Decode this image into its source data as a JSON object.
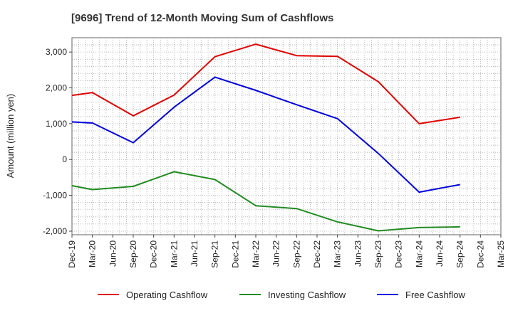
{
  "chart_data": {
    "type": "line",
    "title": "[9696]  Trend of 12-Month Moving Sum of Cashflows",
    "xlabel": "",
    "ylabel": "Amount (million yen)",
    "ylim": [
      -2100,
      3400
    ],
    "yticks": [
      -2000,
      -1000,
      0,
      1000,
      2000,
      3000
    ],
    "ytick_labels": [
      "-2,000",
      "-1,000",
      "0",
      "1,000",
      "2,000",
      "3,000"
    ],
    "categories": [
      "Dec-19",
      "Mar-20",
      "Jun-20",
      "Sep-20",
      "Dec-20",
      "Mar-21",
      "Jun-21",
      "Sep-21",
      "Dec-21",
      "Mar-22",
      "Jun-22",
      "Sep-22",
      "Dec-22",
      "Mar-23",
      "Jun-23",
      "Sep-23",
      "Dec-23",
      "Mar-24",
      "Jun-24",
      "Sep-24",
      "Dec-24",
      "Mar-25"
    ],
    "grid": true,
    "legend_position": "bottom",
    "series": [
      {
        "name": "Operating Cashflow",
        "color": "#e00000",
        "points": [
          [
            "Dec-19",
            1790
          ],
          [
            "Mar-20",
            1870
          ],
          [
            "Sep-20",
            1220
          ],
          [
            "Mar-21",
            1800
          ],
          [
            "Sep-21",
            2870
          ],
          [
            "Mar-22",
            3220
          ],
          [
            "Sep-22",
            2900
          ],
          [
            "Mar-23",
            2880
          ],
          [
            "Sep-23",
            2170
          ],
          [
            "Mar-24",
            1000
          ],
          [
            "Sep-24",
            1180
          ]
        ]
      },
      {
        "name": "Investing Cashflow",
        "color": "#228b22",
        "points": [
          [
            "Dec-19",
            -730
          ],
          [
            "Mar-20",
            -840
          ],
          [
            "Sep-20",
            -750
          ],
          [
            "Mar-21",
            -340
          ],
          [
            "Sep-21",
            -560
          ],
          [
            "Mar-22",
            -1290
          ],
          [
            "Sep-22",
            -1370
          ],
          [
            "Mar-23",
            -1740
          ],
          [
            "Sep-23",
            -1990
          ],
          [
            "Mar-24",
            -1900
          ],
          [
            "Sep-24",
            -1880
          ]
        ]
      },
      {
        "name": "Free Cashflow",
        "color": "#0000dd",
        "points": [
          [
            "Dec-19",
            1050
          ],
          [
            "Mar-20",
            1020
          ],
          [
            "Sep-20",
            470
          ],
          [
            "Mar-21",
            1460
          ],
          [
            "Sep-21",
            2300
          ],
          [
            "Mar-22",
            1930
          ],
          [
            "Sep-22",
            1530
          ],
          [
            "Mar-23",
            1140
          ],
          [
            "Sep-23",
            170
          ],
          [
            "Mar-24",
            -910
          ],
          [
            "Sep-24",
            -700
          ]
        ]
      }
    ]
  }
}
